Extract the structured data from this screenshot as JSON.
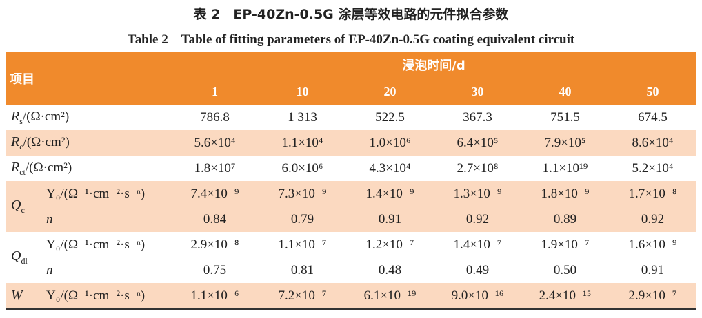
{
  "title": {
    "zh": "表 2　EP-40Zn-0.5G 涂层等效电路的元件拟合参数",
    "en": "Table 2　Table of fitting parameters of EP-40Zn-0.5G coating equivalent circuit"
  },
  "table": {
    "header": {
      "item": "项目",
      "group": "浸泡时间/d",
      "days": [
        "1",
        "10",
        "20",
        "30",
        "40",
        "50"
      ]
    },
    "rows": [
      {
        "symbol": "R",
        "sub": "s",
        "unit": "/(Ω·cm²)",
        "values": [
          "786.8",
          "1 313",
          "522.5",
          "367.3",
          "751.5",
          "674.5"
        ]
      },
      {
        "symbol": "R",
        "sub": "c",
        "unit": "/(Ω·cm²)",
        "values": [
          "5.6×10⁴",
          "1.1×10⁴",
          "1.0×10⁶",
          "6.4×10⁵",
          "7.9×10⁵",
          "8.6×10⁴"
        ]
      },
      {
        "symbol": "R",
        "sub": "ct",
        "unit": "/(Ω·cm²)",
        "values": [
          "1.8×10⁷",
          "6.0×10⁶",
          "4.3×10⁴",
          "2.7×10⁸",
          "1.1×10¹⁹",
          "5.2×10⁴"
        ]
      },
      {
        "symbol": "Q",
        "sub": "c",
        "params": [
          {
            "name": "Y₀/(Ω⁻¹·cm⁻²·s⁻ⁿ)",
            "values": [
              "7.4×10⁻⁹",
              "7.3×10⁻⁹",
              "1.4×10⁻⁹",
              "1.3×10⁻⁹",
              "1.8×10⁻⁹",
              "1.7×10⁻⁸"
            ]
          },
          {
            "name": "n",
            "values": [
              "0.84",
              "0.79",
              "0.91",
              "0.92",
              "0.89",
              "0.92"
            ]
          }
        ]
      },
      {
        "symbol": "Q",
        "sub": "dl",
        "params": [
          {
            "name": "Y₀/(Ω⁻¹·cm⁻²·s⁻ⁿ)",
            "values": [
              "2.9×10⁻⁸",
              "1.1×10⁻⁷",
              "1.2×10⁻⁷",
              "1.4×10⁻⁷",
              "1.9×10⁻⁷",
              "1.6×10⁻⁹"
            ]
          },
          {
            "name": "n",
            "values": [
              "0.75",
              "0.81",
              "0.48",
              "0.49",
              "0.50",
              "0.91"
            ]
          }
        ]
      },
      {
        "symbol": "W",
        "params": [
          {
            "name": "Y₀/(Ω⁻¹·cm⁻²·s⁻ⁿ)",
            "values": [
              "1.1×10⁻⁶",
              "7.2×10⁻⁷",
              "6.1×10⁻¹⁹",
              "9.0×10⁻¹⁶",
              "2.4×10⁻¹⁵",
              "2.9×10⁻⁷"
            ]
          }
        ]
      }
    ]
  }
}
